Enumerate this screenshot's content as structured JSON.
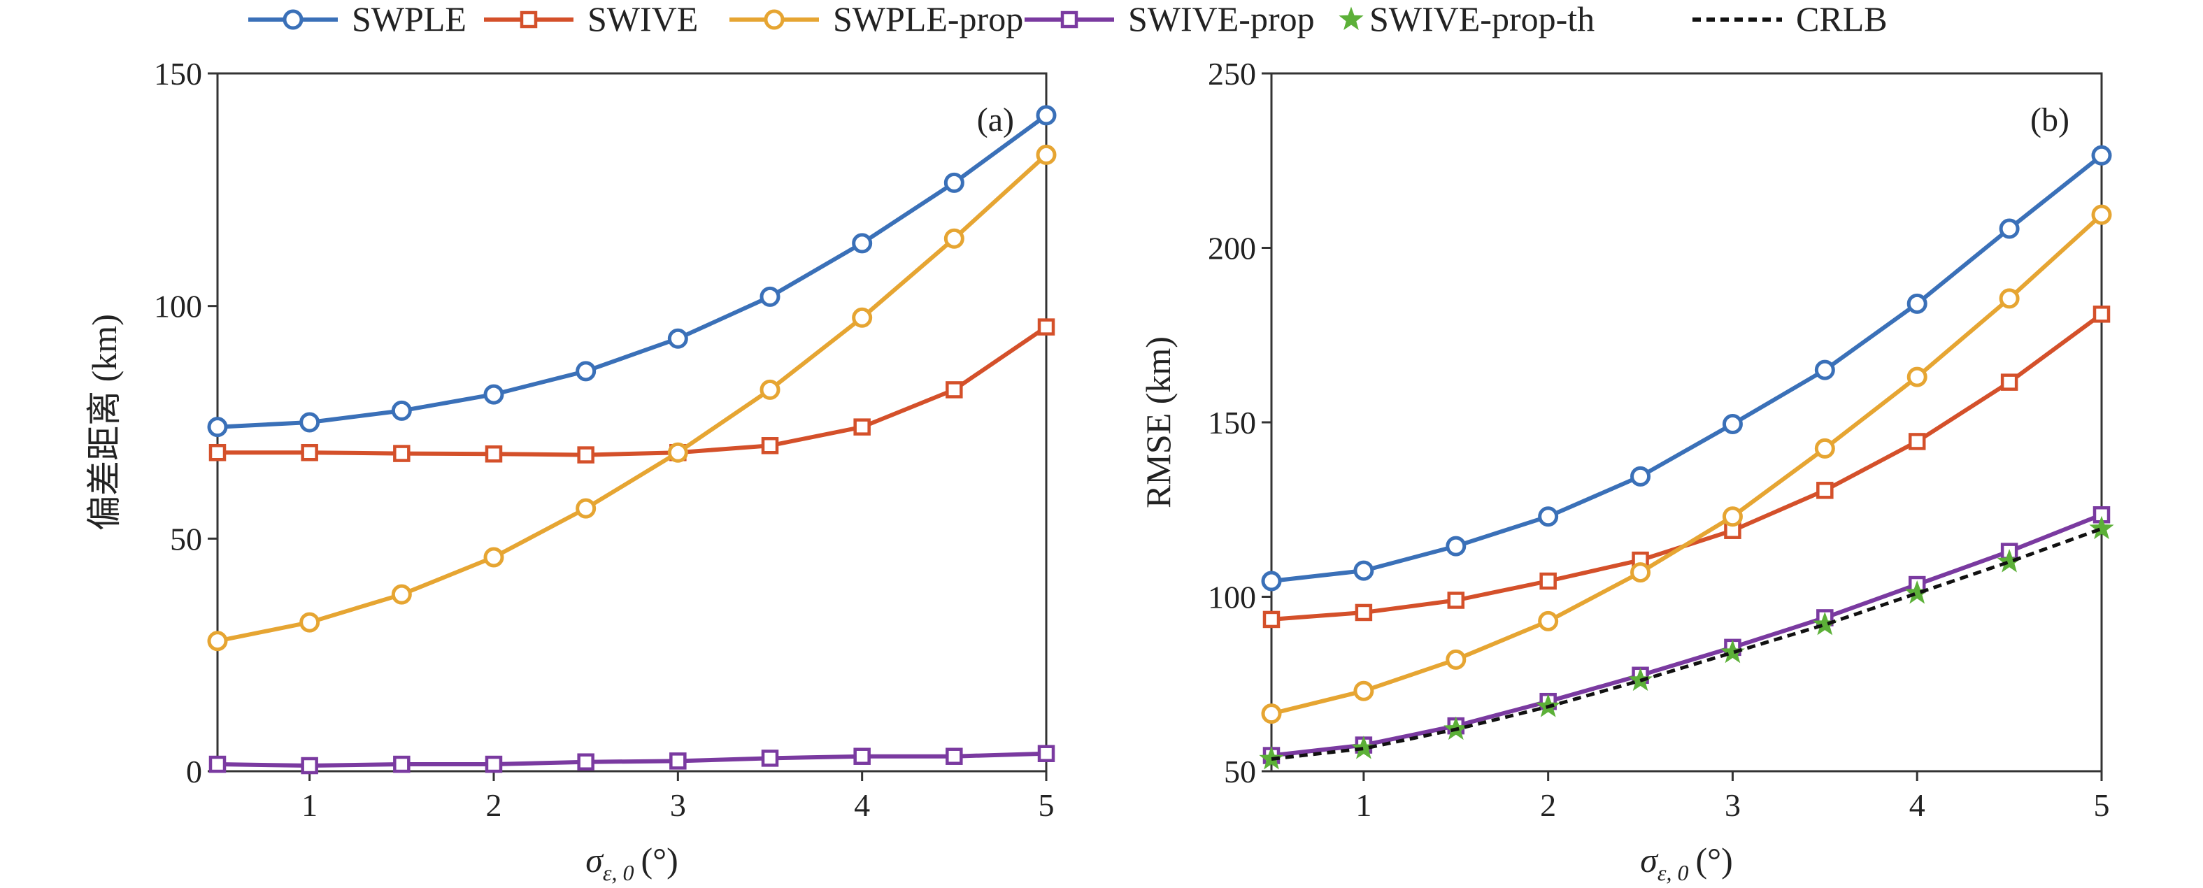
{
  "legend": [
    {
      "label": "SWPLE",
      "color": "#3a70b8",
      "marker": "circle",
      "dash": "solid"
    },
    {
      "label": "SWIVE",
      "color": "#d4502a",
      "marker": "square",
      "dash": "solid"
    },
    {
      "label": "SWPLE-prop",
      "color": "#e6a532",
      "marker": "circle",
      "dash": "solid"
    },
    {
      "label": "SWIVE-prop",
      "color": "#7a3aa0",
      "marker": "square",
      "dash": "solid"
    },
    {
      "label": "SWIVE-prop-th",
      "color": "#5cb038",
      "marker": "star",
      "dash": "none"
    },
    {
      "label": "CRLB",
      "color": "#111111",
      "marker": "none",
      "dash": "dashed"
    }
  ],
  "chart_data": [
    {
      "type": "line",
      "panel_label": "(a)",
      "xlabel_symbol": "σ",
      "xlabel_subscript": "ε, 0",
      "xlabel_unit": "(°)",
      "ylabel": "偏差距离 (km)",
      "xlim": [
        0.5,
        5
      ],
      "ylim": [
        0,
        150
      ],
      "xticks": [
        1,
        2,
        3,
        4,
        5
      ],
      "yticks": [
        0,
        50,
        100,
        150
      ],
      "grid": false,
      "legend_position": "top",
      "x": [
        0.5,
        1,
        1.5,
        2,
        2.5,
        3,
        3.5,
        4,
        4.5,
        5
      ],
      "series": [
        {
          "name": "SWPLE",
          "values": [
            74,
            75,
            77.5,
            81,
            86,
            93,
            102,
            113.5,
            126.5,
            141
          ]
        },
        {
          "name": "SWIVE",
          "values": [
            68.5,
            68.5,
            68.3,
            68.2,
            68,
            68.5,
            70,
            74,
            82,
            95.5
          ]
        },
        {
          "name": "SWPLE-prop",
          "values": [
            28,
            32,
            38,
            46,
            56.5,
            68.5,
            82,
            97.5,
            114.5,
            132.5
          ]
        },
        {
          "name": "SWIVE-prop",
          "values": [
            1.5,
            1.2,
            1.5,
            1.5,
            2,
            2.2,
            2.8,
            3.2,
            3.2,
            3.8
          ]
        }
      ]
    },
    {
      "type": "line",
      "panel_label": "(b)",
      "xlabel_symbol": "σ",
      "xlabel_subscript": "ε, 0",
      "xlabel_unit": "(°)",
      "ylabel": "RMSE (km)",
      "xlim": [
        0.5,
        5
      ],
      "ylim": [
        50,
        250
      ],
      "xticks": [
        1,
        2,
        3,
        4,
        5
      ],
      "yticks": [
        50,
        100,
        150,
        200,
        250
      ],
      "grid": false,
      "legend_position": "top",
      "x": [
        0.5,
        1,
        1.5,
        2,
        2.5,
        3,
        3.5,
        4,
        4.5,
        5
      ],
      "series": [
        {
          "name": "SWPLE",
          "values": [
            104.5,
            107.5,
            114.5,
            123,
            134.5,
            149.5,
            165,
            184,
            205.5,
            226.5
          ]
        },
        {
          "name": "SWIVE",
          "values": [
            93.5,
            95.5,
            99,
            104.5,
            110.5,
            119,
            130.5,
            144.5,
            161.5,
            181
          ]
        },
        {
          "name": "SWPLE-prop",
          "values": [
            66.5,
            73,
            82,
            93,
            107,
            123,
            142.5,
            163,
            185.5,
            209.5
          ]
        },
        {
          "name": "SWIVE-prop",
          "values": [
            54.5,
            57.5,
            63,
            70,
            77.5,
            85.5,
            94,
            103.5,
            113,
            123.5
          ]
        },
        {
          "name": "SWIVE-prop-th",
          "values": [
            53.5,
            56.5,
            62,
            68.5,
            76,
            84,
            92,
            101,
            110,
            119.5
          ]
        },
        {
          "name": "CRLB",
          "values": [
            53.5,
            56.5,
            62,
            68.5,
            76,
            84,
            92,
            101,
            110,
            119.5
          ]
        }
      ]
    }
  ]
}
